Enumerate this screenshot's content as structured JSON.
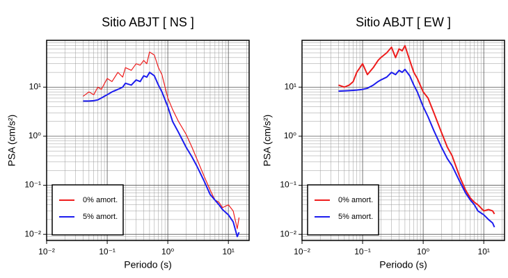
{
  "chart_data": [
    {
      "type": "line",
      "title": "Sitio ABJT [ NS ]",
      "xlabel": "Periodo (s)",
      "ylabel": "PSA (cm/s²)",
      "log_x": true,
      "log_y": true,
      "grid": true,
      "legend": "lower left",
      "xlim": [
        0.01,
        22
      ],
      "ylim": [
        0.0075,
        90
      ],
      "xticks": [
        {
          "value": 0.01,
          "label": "10⁻²"
        },
        {
          "value": 0.1,
          "label": "10⁻¹"
        },
        {
          "value": 1,
          "label": "10⁰"
        },
        {
          "value": 10,
          "label": "10¹"
        }
      ],
      "yticks": [
        {
          "value": 0.01,
          "label": "10⁻²"
        },
        {
          "value": 0.1,
          "label": "10⁻¹"
        },
        {
          "value": 1,
          "label": "10⁰"
        },
        {
          "value": 10,
          "label": "10¹"
        }
      ],
      "x": [
        0.04,
        0.05,
        0.06,
        0.07,
        0.08,
        0.1,
        0.12,
        0.15,
        0.18,
        0.2,
        0.25,
        0.3,
        0.35,
        0.4,
        0.45,
        0.5,
        0.6,
        0.7,
        0.8,
        1.0,
        1.2,
        1.5,
        2,
        2.5,
        3,
        4,
        5,
        6,
        7,
        8,
        10,
        12,
        14,
        15
      ],
      "series": [
        {
          "name": "0% amort.",
          "color": "#ee1c1c",
          "width": 1.2,
          "values": [
            6.5,
            8,
            7,
            10,
            9,
            15,
            13,
            20,
            16,
            25,
            22,
            30,
            28,
            35,
            30,
            52,
            45,
            25,
            18,
            6,
            3.5,
            2,
            1.1,
            0.6,
            0.35,
            0.15,
            0.08,
            0.05,
            0.045,
            0.035,
            0.04,
            0.03,
            0.013,
            0.022
          ]
        },
        {
          "name": "5% amort.",
          "color": "#1c1cee",
          "width": 2,
          "values": [
            5.2,
            5.2,
            5.3,
            5.5,
            6,
            7,
            8,
            9,
            10,
            12,
            11,
            14,
            13,
            17,
            16,
            20,
            17,
            11,
            8,
            4,
            2,
            1.2,
            0.6,
            0.38,
            0.25,
            0.12,
            0.065,
            0.05,
            0.04,
            0.032,
            0.025,
            0.018,
            0.009,
            0.011
          ]
        }
      ]
    },
    {
      "type": "line",
      "title": "Sitio ABJT [ EW ]",
      "xlabel": "Periodo (s)",
      "ylabel": "PSA (cm/s²)",
      "log_x": true,
      "log_y": true,
      "grid": true,
      "legend": "lower left",
      "xlim": [
        0.01,
        22
      ],
      "ylim": [
        0.0075,
        90
      ],
      "xticks": [
        {
          "value": 0.01,
          "label": "10⁻²"
        },
        {
          "value": 0.1,
          "label": "10⁻¹"
        },
        {
          "value": 1,
          "label": "10⁰"
        },
        {
          "value": 10,
          "label": "10¹"
        }
      ],
      "yticks": [
        {
          "value": 0.01,
          "label": "10⁻²"
        },
        {
          "value": 0.1,
          "label": "10⁻¹"
        },
        {
          "value": 1,
          "label": "10⁰"
        },
        {
          "value": 10,
          "label": "10¹"
        }
      ],
      "x": [
        0.04,
        0.05,
        0.06,
        0.07,
        0.08,
        0.1,
        0.12,
        0.15,
        0.18,
        0.2,
        0.25,
        0.3,
        0.35,
        0.4,
        0.45,
        0.5,
        0.6,
        0.7,
        0.8,
        1.0,
        1.2,
        1.5,
        2,
        2.5,
        3,
        4,
        5,
        6,
        7,
        8,
        10,
        12,
        14,
        15
      ],
      "series": [
        {
          "name": "0% amort.",
          "color": "#ee1c1c",
          "width": 2,
          "values": [
            11,
            10,
            11,
            13,
            20,
            30,
            18,
            25,
            35,
            40,
            50,
            65,
            40,
            60,
            55,
            70,
            35,
            20,
            15,
            8,
            6,
            3,
            1.2,
            0.6,
            0.4,
            0.15,
            0.08,
            0.055,
            0.045,
            0.04,
            0.03,
            0.032,
            0.03,
            0.026
          ]
        },
        {
          "name": "5% amort.",
          "color": "#1c1cee",
          "width": 2,
          "values": [
            8.3,
            8.4,
            8.5,
            8.6,
            8.7,
            9,
            9.5,
            11,
            13,
            14,
            16,
            20,
            18,
            22,
            20,
            23,
            17,
            11,
            8,
            4,
            2.5,
            1.3,
            0.6,
            0.35,
            0.25,
            0.12,
            0.07,
            0.05,
            0.04,
            0.03,
            0.025,
            0.02,
            0.017,
            0.014
          ]
        }
      ]
    }
  ]
}
